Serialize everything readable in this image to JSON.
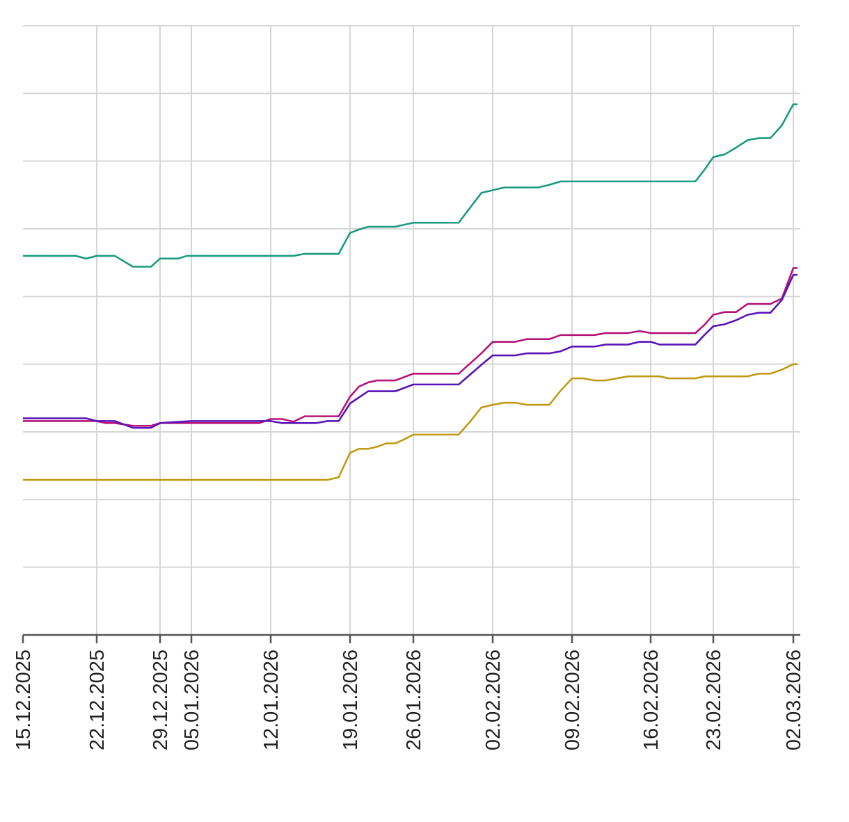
{
  "chart_data": {
    "type": "line",
    "title": "",
    "xlabel": "",
    "ylabel": "",
    "x_tick_labels": [
      "15.12.2025",
      "22.12.2025",
      "29.12.2025",
      "05.01.2026",
      "12.01.2026",
      "19.01.2026",
      "26.01.2026",
      "02.02.2026",
      "09.02.2026",
      "16.02.2026",
      "23.02.2026",
      "02.03.2026"
    ],
    "y_tick_labels": [],
    "ylim": [
      0,
      9
    ],
    "grid": true,
    "legend": "none",
    "series": [
      {
        "color": "#1a9a80",
        "points": [
          [
            "15.12.2025",
            5.6
          ],
          [
            "20.12.2025",
            5.6
          ],
          [
            "21.12.2025",
            5.56
          ],
          [
            "22.12.2025",
            5.6
          ],
          [
            "24.12.2025",
            5.6
          ],
          [
            "26.12.2025",
            5.44
          ],
          [
            "28.12.2025",
            5.44
          ],
          [
            "29.12.2025",
            5.56
          ],
          [
            "02.01.2026",
            5.56
          ],
          [
            "04.01.2026",
            5.6
          ],
          [
            "14.01.2026",
            5.6
          ],
          [
            "15.01.2026",
            5.63
          ],
          [
            "18.01.2026",
            5.63
          ],
          [
            "19.01.2026",
            5.94
          ],
          [
            "20.01.2026",
            5.99
          ],
          [
            "21.01.2026",
            6.03
          ],
          [
            "24.01.2026",
            6.03
          ],
          [
            "25.01.2026",
            6.06
          ],
          [
            "26.01.2026",
            6.09
          ],
          [
            "30.01.2026",
            6.09
          ],
          [
            "01.02.2026",
            6.53
          ],
          [
            "02.02.2026",
            6.57
          ],
          [
            "03.02.2026",
            6.61
          ],
          [
            "06.02.2026",
            6.61
          ],
          [
            "07.02.2026",
            6.65
          ],
          [
            "08.02.2026",
            6.7
          ],
          [
            "21.02.2026",
            6.7
          ],
          [
            "22.02.2026",
            6.87
          ],
          [
            "23.02.2026",
            7.06
          ],
          [
            "24.02.2026",
            7.1
          ],
          [
            "25.02.2026",
            7.2
          ],
          [
            "26.02.2026",
            7.31
          ],
          [
            "27.02.2026",
            7.34
          ],
          [
            "28.02.2026",
            7.34
          ],
          [
            "01.03.2026",
            7.53
          ],
          [
            "02.03.2026",
            7.84
          ]
        ]
      },
      {
        "color": "#b5127a",
        "points": [
          [
            "15.12.2025",
            3.16
          ],
          [
            "22.12.2025",
            3.16
          ],
          [
            "23.12.2025",
            3.13
          ],
          [
            "24.12.2025",
            3.13
          ],
          [
            "26.12.2025",
            3.09
          ],
          [
            "28.12.2025",
            3.09
          ],
          [
            "29.12.2025",
            3.13
          ],
          [
            "11.01.2026",
            3.13
          ],
          [
            "12.01.2026",
            3.19
          ],
          [
            "13.01.2026",
            3.19
          ],
          [
            "14.01.2026",
            3.15
          ],
          [
            "15.01.2026",
            3.23
          ],
          [
            "18.01.2026",
            3.23
          ],
          [
            "19.01.2026",
            3.52
          ],
          [
            "20.01.2026",
            3.67
          ],
          [
            "21.01.2026",
            3.73
          ],
          [
            "22.01.2026",
            3.76
          ],
          [
            "24.01.2026",
            3.76
          ],
          [
            "26.01.2026",
            3.86
          ],
          [
            "30.01.2026",
            3.86
          ],
          [
            "01.02.2026",
            4.16
          ],
          [
            "02.02.2026",
            4.33
          ],
          [
            "04.02.2026",
            4.33
          ],
          [
            "05.02.2026",
            4.37
          ],
          [
            "07.02.2026",
            4.37
          ],
          [
            "08.02.2026",
            4.43
          ],
          [
            "11.02.2026",
            4.43
          ],
          [
            "12.02.2026",
            4.46
          ],
          [
            "14.02.2026",
            4.46
          ],
          [
            "15.02.2026",
            4.49
          ],
          [
            "16.02.2026",
            4.46
          ],
          [
            "21.02.2026",
            4.46
          ],
          [
            "22.02.2026",
            4.58
          ],
          [
            "23.02.2026",
            4.73
          ],
          [
            "24.02.2026",
            4.77
          ],
          [
            "25.02.2026",
            4.77
          ],
          [
            "26.02.2026",
            4.89
          ],
          [
            "28.02.2026",
            4.89
          ],
          [
            "01.03.2026",
            4.97
          ],
          [
            "02.03.2026",
            5.42
          ]
        ]
      },
      {
        "color": "#5a14b8",
        "points": [
          [
            "15.12.2025",
            3.2
          ],
          [
            "21.12.2025",
            3.2
          ],
          [
            "22.12.2025",
            3.16
          ],
          [
            "24.12.2025",
            3.16
          ],
          [
            "26.12.2025",
            3.06
          ],
          [
            "28.12.2025",
            3.06
          ],
          [
            "29.12.2025",
            3.13
          ],
          [
            "05.01.2026",
            3.16
          ],
          [
            "12.01.2026",
            3.16
          ],
          [
            "13.01.2026",
            3.13
          ],
          [
            "16.01.2026",
            3.13
          ],
          [
            "17.01.2026",
            3.16
          ],
          [
            "18.01.2026",
            3.16
          ],
          [
            "19.01.2026",
            3.42
          ],
          [
            "21.01.2026",
            3.6
          ],
          [
            "24.01.2026",
            3.6
          ],
          [
            "26.01.2026",
            3.7
          ],
          [
            "30.01.2026",
            3.7
          ],
          [
            "01.02.2026",
            3.99
          ],
          [
            "02.02.2026",
            4.13
          ],
          [
            "04.02.2026",
            4.13
          ],
          [
            "05.02.2026",
            4.16
          ],
          [
            "07.02.2026",
            4.16
          ],
          [
            "08.02.2026",
            4.19
          ],
          [
            "09.02.2026",
            4.26
          ],
          [
            "11.02.2026",
            4.26
          ],
          [
            "12.02.2026",
            4.29
          ],
          [
            "14.02.2026",
            4.29
          ],
          [
            "15.02.2026",
            4.33
          ],
          [
            "16.02.2026",
            4.33
          ],
          [
            "17.02.2026",
            4.29
          ],
          [
            "21.02.2026",
            4.29
          ],
          [
            "22.02.2026",
            4.43
          ],
          [
            "23.02.2026",
            4.56
          ],
          [
            "24.02.2026",
            4.59
          ],
          [
            "25.02.2026",
            4.65
          ],
          [
            "26.02.2026",
            4.73
          ],
          [
            "27.02.2026",
            4.76
          ],
          [
            "28.02.2026",
            4.76
          ],
          [
            "01.03.2026",
            4.95
          ],
          [
            "02.03.2026",
            5.32
          ]
        ]
      },
      {
        "color": "#c09a14",
        "points": [
          [
            "15.12.2025",
            2.29
          ],
          [
            "17.01.2026",
            2.29
          ],
          [
            "18.01.2026",
            2.33
          ],
          [
            "19.01.2026",
            2.69
          ],
          [
            "20.01.2026",
            2.75
          ],
          [
            "21.01.2026",
            2.75
          ],
          [
            "22.01.2026",
            2.78
          ],
          [
            "23.01.2026",
            2.83
          ],
          [
            "24.01.2026",
            2.83
          ],
          [
            "25.01.2026",
            2.89
          ],
          [
            "26.01.2026",
            2.96
          ],
          [
            "30.01.2026",
            2.96
          ],
          [
            "31.01.2026",
            3.15
          ],
          [
            "01.02.2026",
            3.36
          ],
          [
            "02.02.2026",
            3.4
          ],
          [
            "03.02.2026",
            3.43
          ],
          [
            "04.02.2026",
            3.43
          ],
          [
            "05.02.2026",
            3.4
          ],
          [
            "07.02.2026",
            3.4
          ],
          [
            "08.02.2026",
            3.61
          ],
          [
            "09.02.2026",
            3.79
          ],
          [
            "10.02.2026",
            3.79
          ],
          [
            "11.02.2026",
            3.76
          ],
          [
            "12.02.2026",
            3.76
          ],
          [
            "13.02.2026",
            3.79
          ],
          [
            "14.02.2026",
            3.82
          ],
          [
            "17.02.2026",
            3.82
          ],
          [
            "18.02.2026",
            3.79
          ],
          [
            "21.02.2026",
            3.79
          ],
          [
            "22.02.2026",
            3.82
          ],
          [
            "26.02.2026",
            3.82
          ],
          [
            "27.02.2026",
            3.86
          ],
          [
            "28.02.2026",
            3.86
          ],
          [
            "01.03.2026",
            3.92
          ],
          [
            "02.03.2026",
            4.0
          ]
        ]
      }
    ]
  }
}
